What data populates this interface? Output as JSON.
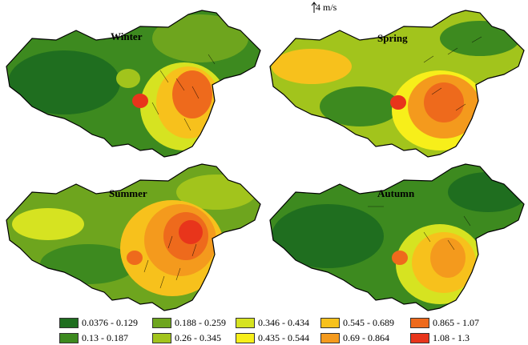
{
  "wind_reference": {
    "label": "4 m/s"
  },
  "panels": [
    {
      "season": "Winter"
    },
    {
      "season": "Spring"
    },
    {
      "season": "Summer"
    },
    {
      "season": "Autumn"
    }
  ],
  "legend": {
    "items": [
      {
        "label": "0.0376 - 0.129",
        "color": "#1f6e1f"
      },
      {
        "label": "0.13 - 0.187",
        "color": "#3d8a1f"
      },
      {
        "label": "0.188 - 0.259",
        "color": "#6ea51e"
      },
      {
        "label": "0.26 - 0.345",
        "color": "#a2c41c"
      },
      {
        "label": "0.346 - 0.434",
        "color": "#d6e321"
      },
      {
        "label": "0.435 - 0.544",
        "color": "#f7ef1a"
      },
      {
        "label": "0.545 - 0.689",
        "color": "#f7c11c"
      },
      {
        "label": "0.69 - 0.864",
        "color": "#f49a1d"
      },
      {
        "label": "0.865 - 1.07",
        "color": "#ee6a1c"
      },
      {
        "label": "1.08 - 1.3",
        "color": "#e8351b"
      }
    ]
  }
}
